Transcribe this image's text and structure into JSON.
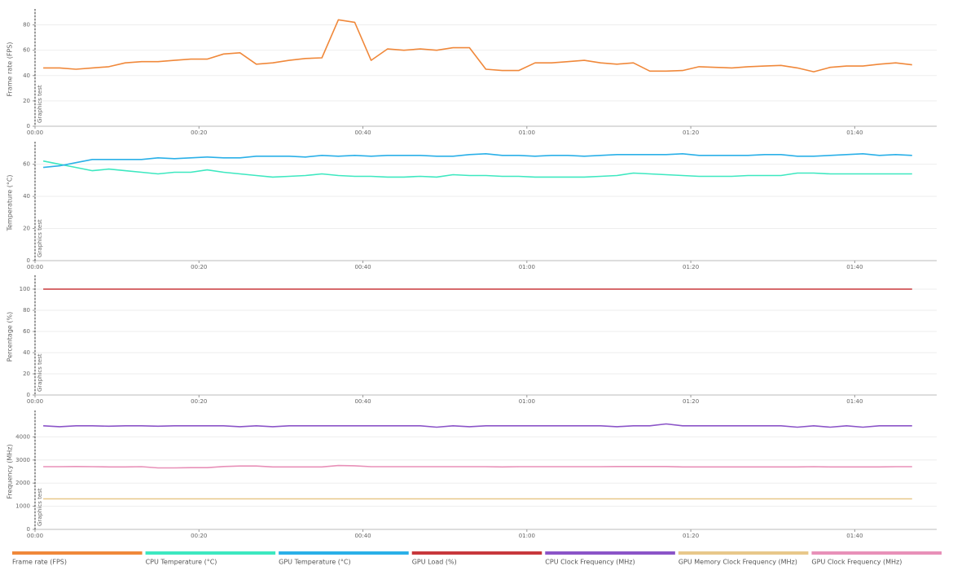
{
  "chart_data": [
    {
      "type": "line",
      "ylabel": "Frame rate (FPS)",
      "annotation": "Graphics test",
      "x": [
        1,
        3,
        5,
        7,
        9,
        11,
        13,
        15,
        17,
        19,
        21,
        23,
        25,
        27,
        29,
        31,
        33,
        35,
        37,
        39,
        41,
        43,
        45,
        47,
        49,
        51,
        53,
        55,
        57,
        59,
        61,
        63,
        65,
        67,
        69,
        71,
        73,
        75,
        77,
        79,
        81,
        83,
        85,
        87,
        89,
        91,
        93,
        95,
        97,
        99,
        101,
        103,
        105,
        107
      ],
      "xlim": [
        0,
        110
      ],
      "xticks": [
        {
          "value": 0,
          "label": "00:00"
        },
        {
          "value": 20,
          "label": "00:20"
        },
        {
          "value": 40,
          "label": "00:40"
        },
        {
          "value": 60,
          "label": "01:00"
        },
        {
          "value": 80,
          "label": "01:20"
        },
        {
          "value": 100,
          "label": "01:40"
        }
      ],
      "ylim": [
        0,
        90
      ],
      "yticks": [
        0,
        20,
        40,
        60,
        80
      ],
      "grid": true,
      "series": [
        {
          "name": "Frame rate (FPS)",
          "color": "#f0883a",
          "values": [
            46,
            46,
            45,
            46,
            47,
            50,
            51,
            51,
            52,
            53,
            53,
            57,
            58,
            49,
            50,
            52,
            53.5,
            54,
            84,
            82,
            52,
            61,
            60,
            61,
            60,
            62,
            62,
            45,
            44,
            44,
            50,
            50,
            51,
            52,
            50,
            49,
            50,
            43.5,
            43.5,
            44,
            47,
            46.5,
            46,
            47,
            47.5,
            48,
            46,
            43,
            46.5,
            47.5,
            47.5,
            49,
            50,
            48.5
          ]
        }
      ]
    },
    {
      "type": "line",
      "ylabel": "Temperature (°C)",
      "annotation": "Graphics test",
      "x": [
        1,
        3,
        5,
        7,
        9,
        11,
        13,
        15,
        17,
        19,
        21,
        23,
        25,
        27,
        29,
        31,
        33,
        35,
        37,
        39,
        41,
        43,
        45,
        47,
        49,
        51,
        53,
        55,
        57,
        59,
        61,
        63,
        65,
        67,
        69,
        71,
        73,
        75,
        77,
        79,
        81,
        83,
        85,
        87,
        89,
        91,
        93,
        95,
        97,
        99,
        101,
        103,
        105,
        107
      ],
      "xlim": [
        0,
        110
      ],
      "xticks": [
        {
          "value": 0,
          "label": "00:00"
        },
        {
          "value": 20,
          "label": "00:20"
        },
        {
          "value": 40,
          "label": "00:40"
        },
        {
          "value": 60,
          "label": "01:00"
        },
        {
          "value": 80,
          "label": "01:20"
        },
        {
          "value": 100,
          "label": "01:40"
        }
      ],
      "ylim": [
        0,
        72
      ],
      "yticks": [
        0,
        20,
        40,
        60
      ],
      "grid": true,
      "series": [
        {
          "name": "CPU Temperature (°C)",
          "color": "#3de8c0",
          "values": [
            62,
            60,
            58,
            56,
            57,
            56,
            55,
            54,
            55,
            55,
            56.5,
            55,
            54,
            53,
            52,
            52.5,
            53,
            54,
            53,
            52.5,
            52.5,
            52,
            52,
            52.5,
            52,
            53.5,
            53,
            53,
            52.5,
            52.5,
            52,
            52,
            52,
            52,
            52.5,
            53,
            54.5,
            54,
            53.5,
            53,
            52.5,
            52.5,
            52.5,
            53,
            53,
            53,
            54.5,
            54.5,
            54,
            54,
            54,
            54,
            54,
            54
          ]
        },
        {
          "name": "GPU Temperature (°C)",
          "color": "#2ab0e8",
          "values": [
            58,
            59,
            61,
            63,
            63,
            63,
            63,
            64,
            63.5,
            64,
            64.5,
            64,
            64,
            65,
            65,
            65,
            64.5,
            65.5,
            65,
            65.5,
            65,
            65.5,
            65.5,
            65.5,
            65,
            65,
            66,
            66.5,
            65.5,
            65.5,
            65,
            65.5,
            65.5,
            65,
            65.5,
            66,
            66,
            66,
            66,
            66.5,
            65.5,
            65.5,
            65.5,
            65.5,
            66,
            66,
            65,
            65,
            65.5,
            66,
            66.5,
            65.5,
            66,
            65.5
          ]
        }
      ]
    },
    {
      "type": "line",
      "ylabel": "Percentage (%)",
      "annotation": "Graphics test",
      "x": [
        1,
        3,
        5,
        7,
        9,
        11,
        13,
        15,
        17,
        19,
        21,
        23,
        25,
        27,
        29,
        31,
        33,
        35,
        37,
        39,
        41,
        43,
        45,
        47,
        49,
        51,
        53,
        55,
        57,
        59,
        61,
        63,
        65,
        67,
        69,
        71,
        73,
        75,
        77,
        79,
        81,
        83,
        85,
        87,
        89,
        91,
        93,
        95,
        97,
        99,
        101,
        103,
        105,
        107
      ],
      "xlim": [
        0,
        110
      ],
      "xticks": [
        {
          "value": 0,
          "label": "00:00"
        },
        {
          "value": 20,
          "label": "00:20"
        },
        {
          "value": 40,
          "label": "00:40"
        },
        {
          "value": 60,
          "label": "01:00"
        },
        {
          "value": 80,
          "label": "01:20"
        },
        {
          "value": 100,
          "label": "01:40"
        }
      ],
      "ylim": [
        0,
        110
      ],
      "yticks": [
        0,
        20,
        40,
        60,
        80,
        100
      ],
      "grid": true,
      "series": [
        {
          "name": "GPU Load (%)",
          "color": "#c8383c",
          "values": [
            100,
            100,
            100,
            100,
            100,
            100,
            100,
            100,
            100,
            100,
            100,
            100,
            100,
            100,
            100,
            100,
            100,
            100,
            100,
            100,
            100,
            100,
            100,
            100,
            100,
            100,
            100,
            100,
            100,
            100,
            100,
            100,
            100,
            100,
            100,
            100,
            100,
            100,
            100,
            100,
            100,
            100,
            100,
            100,
            100,
            100,
            100,
            100,
            100,
            100,
            100,
            100,
            100,
            100
          ]
        }
      ]
    },
    {
      "type": "line",
      "ylabel": "Frequency (MHz)",
      "annotation": "Graphics test",
      "x": [
        1,
        3,
        5,
        7,
        9,
        11,
        13,
        15,
        17,
        19,
        21,
        23,
        25,
        27,
        29,
        31,
        33,
        35,
        37,
        39,
        41,
        43,
        45,
        47,
        49,
        51,
        53,
        55,
        57,
        59,
        61,
        63,
        65,
        67,
        69,
        71,
        73,
        75,
        77,
        79,
        81,
        83,
        85,
        87,
        89,
        91,
        93,
        95,
        97,
        99,
        101,
        103,
        105,
        107
      ],
      "xlim": [
        0,
        110
      ],
      "xticks": [
        {
          "value": 0,
          "label": "00:00"
        },
        {
          "value": 20,
          "label": "00:20"
        },
        {
          "value": 40,
          "label": "00:40"
        },
        {
          "value": 60,
          "label": "01:00"
        },
        {
          "value": 80,
          "label": "01:20"
        },
        {
          "value": 100,
          "label": "01:40"
        }
      ],
      "ylim": [
        0,
        5000
      ],
      "yticks": [
        0,
        1000,
        2000,
        3000,
        4000
      ],
      "grid": true,
      "series": [
        {
          "name": "CPU Clock Frequency (MHz)",
          "color": "#8b54c8",
          "values": [
            4480,
            4440,
            4480,
            4480,
            4460,
            4480,
            4480,
            4460,
            4480,
            4480,
            4480,
            4480,
            4440,
            4480,
            4440,
            4480,
            4480,
            4480,
            4480,
            4480,
            4480,
            4480,
            4480,
            4480,
            4420,
            4480,
            4440,
            4480,
            4480,
            4480,
            4480,
            4480,
            4480,
            4480,
            4480,
            4440,
            4480,
            4480,
            4560,
            4480,
            4480,
            4480,
            4480,
            4480,
            4480,
            4480,
            4420,
            4480,
            4420,
            4480,
            4420,
            4480,
            4480,
            4480
          ]
        },
        {
          "name": "GPU Memory Clock Frequency (MHz)",
          "color": "#e8c88a",
          "values": [
            1320,
            1320,
            1320,
            1320,
            1320,
            1320,
            1320,
            1320,
            1320,
            1320,
            1320,
            1320,
            1320,
            1320,
            1320,
            1320,
            1320,
            1320,
            1320,
            1320,
            1320,
            1320,
            1320,
            1320,
            1320,
            1320,
            1320,
            1320,
            1320,
            1320,
            1320,
            1320,
            1320,
            1320,
            1320,
            1320,
            1320,
            1320,
            1320,
            1320,
            1320,
            1320,
            1320,
            1320,
            1320,
            1320,
            1320,
            1320,
            1320,
            1320,
            1320,
            1320,
            1320,
            1320
          ]
        },
        {
          "name": "GPU Clock Frequency (MHz)",
          "color": "#e890b8",
          "values": [
            2710,
            2710,
            2720,
            2710,
            2700,
            2700,
            2710,
            2660,
            2660,
            2670,
            2670,
            2720,
            2740,
            2740,
            2700,
            2700,
            2700,
            2700,
            2760,
            2750,
            2710,
            2710,
            2710,
            2710,
            2710,
            2710,
            2710,
            2710,
            2700,
            2710,
            2710,
            2710,
            2710,
            2710,
            2710,
            2720,
            2720,
            2720,
            2720,
            2700,
            2700,
            2700,
            2700,
            2700,
            2700,
            2700,
            2700,
            2710,
            2700,
            2700,
            2700,
            2700,
            2710,
            2710
          ]
        }
      ]
    }
  ]
}
